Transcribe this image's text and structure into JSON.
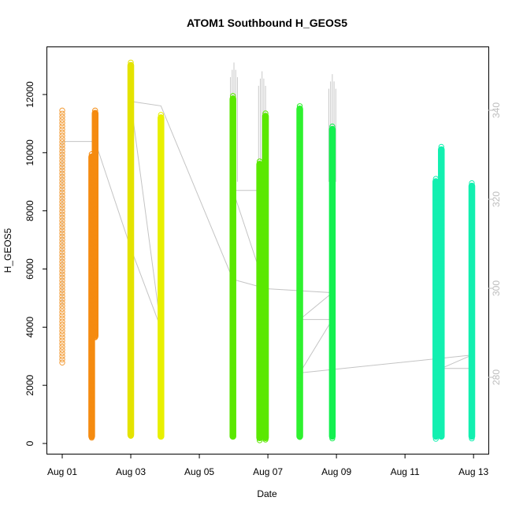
{
  "chart_data": {
    "type": "scatter",
    "title": "ATOM1 Southbound H_GEOS5",
    "xlabel": "Date",
    "ylabel": "H_GEOS5",
    "xlim_days": [
      "Jul 31 19:00",
      "Aug 13 08:00"
    ],
    "ylim": [
      -200,
      13800
    ],
    "y2lim": [
      262,
      355
    ],
    "x_ticks": [
      "Aug 01",
      "Aug 03",
      "Aug 05",
      "Aug 07",
      "Aug 09",
      "Aug 11",
      "Aug 13"
    ],
    "y_ticks": [
      0,
      2000,
      4000,
      6000,
      8000,
      10000,
      12000
    ],
    "y2_ticks": [
      280,
      300,
      320,
      340
    ],
    "grid": false,
    "colors": {
      "right_axis": "#bdbdbd",
      "line": "#c4c4c4",
      "spikes": "#c8c8c8"
    },
    "series": [
      {
        "date": "Aug 01",
        "x": 1.02,
        "color": "#f29a33",
        "hollow": true,
        "ymin": 2700,
        "ymax": 11450
      },
      {
        "date": "Aug 01",
        "x": 1.88,
        "color": "#f58b10",
        "hollow": false,
        "ymin": 150,
        "ymax": 9950
      },
      {
        "date": "Aug 01",
        "x": 1.98,
        "color": "#f58b10",
        "hollow": false,
        "ymin": 3600,
        "ymax": 11450
      },
      {
        "date": "Aug 03",
        "x": 3.02,
        "color": "#e4e300",
        "hollow": false,
        "ymin": 200,
        "ymax": 13100
      },
      {
        "date": "Aug 03",
        "x": 3.9,
        "color": "#e8f000",
        "hollow": false,
        "ymin": 150,
        "ymax": 11300
      },
      {
        "date": "Aug 06",
        "x": 6.0,
        "color": "#5be800",
        "hollow": false,
        "ymin": 150,
        "ymax": 11950
      },
      {
        "date": "Aug 06",
        "x": 6.78,
        "color": "#5be800",
        "hollow": false,
        "ymin": 100,
        "ymax": 9700
      },
      {
        "date": "Aug 06",
        "x": 6.95,
        "color": "#5be800",
        "hollow": false,
        "ymin": 100,
        "ymax": 11350
      },
      {
        "date": "Aug 08",
        "x": 7.95,
        "color": "#2ff12f",
        "hollow": false,
        "ymin": 150,
        "ymax": 11600
      },
      {
        "date": "Aug 08",
        "x": 8.9,
        "color": "#14f050",
        "hollow": false,
        "ymin": 150,
        "ymax": 10900
      },
      {
        "date": "Aug 12",
        "x": 11.92,
        "color": "#12f0b0",
        "hollow": false,
        "ymin": 150,
        "ymax": 9100
      },
      {
        "date": "Aug 12",
        "x": 12.08,
        "color": "#12f0b0",
        "hollow": false,
        "ymin": 150,
        "ymax": 10200
      },
      {
        "date": "Aug 13",
        "x": 12.97,
        "color": "#12f0b0",
        "hollow": false,
        "ymin": 150,
        "ymax": 8950
      }
    ],
    "theta_line": [
      {
        "x": 1.02,
        "y2": 296
      },
      {
        "x": 1.02,
        "y2": 333
      },
      {
        "x": 1.98,
        "y2": 333
      },
      {
        "x": 3.02,
        "y2": 309
      },
      {
        "x": 3.9,
        "y2": 291
      },
      {
        "x": 3.02,
        "y2": 342
      },
      {
        "x": 3.9,
        "y2": 341
      },
      {
        "x": 6.0,
        "y2": 302
      },
      {
        "x": 6.95,
        "y2": 300
      },
      {
        "x": 6.0,
        "y2": 322
      },
      {
        "x": 6.95,
        "y2": 322
      },
      {
        "x": 6.78,
        "y2": 307
      },
      {
        "x": 6.78,
        "y2": 300
      },
      {
        "x": 8.9,
        "y2": 299
      },
      {
        "x": 7.95,
        "y2": 293
      },
      {
        "x": 8.9,
        "y2": 293
      },
      {
        "x": 7.95,
        "y2": 281
      },
      {
        "x": 12.97,
        "y2": 285
      },
      {
        "x": 12.08,
        "y2": 282
      },
      {
        "x": 12.97,
        "y2": 282
      }
    ],
    "spikes": [
      {
        "x": 6.03,
        "ymax": 13100
      },
      {
        "x": 6.85,
        "ymax": 12800
      },
      {
        "x": 8.9,
        "ymax": 12700
      }
    ]
  }
}
